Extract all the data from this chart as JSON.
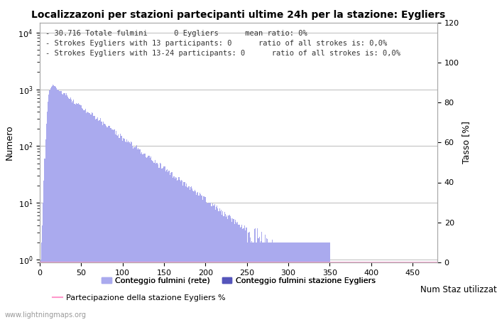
{
  "title": "Localizzazoni per stazioni partecipanti ultime 24h per la stazione: Eygliers",
  "ylabel_left": "Numero",
  "ylabel_right": "Tasso [%]",
  "annotation_lines": [
    "30.716 Totale fulmini      0 Eygliers      mean ratio: 0%",
    "Strokes Eygliers with 13 participants: 0      ratio of all strokes is: 0,0%",
    "Strokes Eygliers with 13-24 participants: 0      ratio of all strokes is: 0,0%"
  ],
  "xlim": [
    0,
    480
  ],
  "ylim_right": [
    0,
    120
  ],
  "bar_color_light": "#aaaaee",
  "bar_color_dark": "#5555bb",
  "line_color": "#ff99cc",
  "watermark": "www.lightningmaps.org",
  "legend_label1": "Conteggio fulmini (rete)",
  "legend_label2": "Conteggio fulmini stazione Eygliers",
  "legend_label3": "Partecipazione della stazione Eygliers %",
  "legend_label4": "Num Staz utilizzate",
  "xticks": [
    0,
    50,
    100,
    150,
    200,
    250,
    300,
    350,
    400,
    450
  ],
  "yticks_right": [
    0,
    20,
    40,
    60,
    80,
    100,
    120
  ],
  "background_color": "#ffffff",
  "grid_color": "#bbbbbb"
}
